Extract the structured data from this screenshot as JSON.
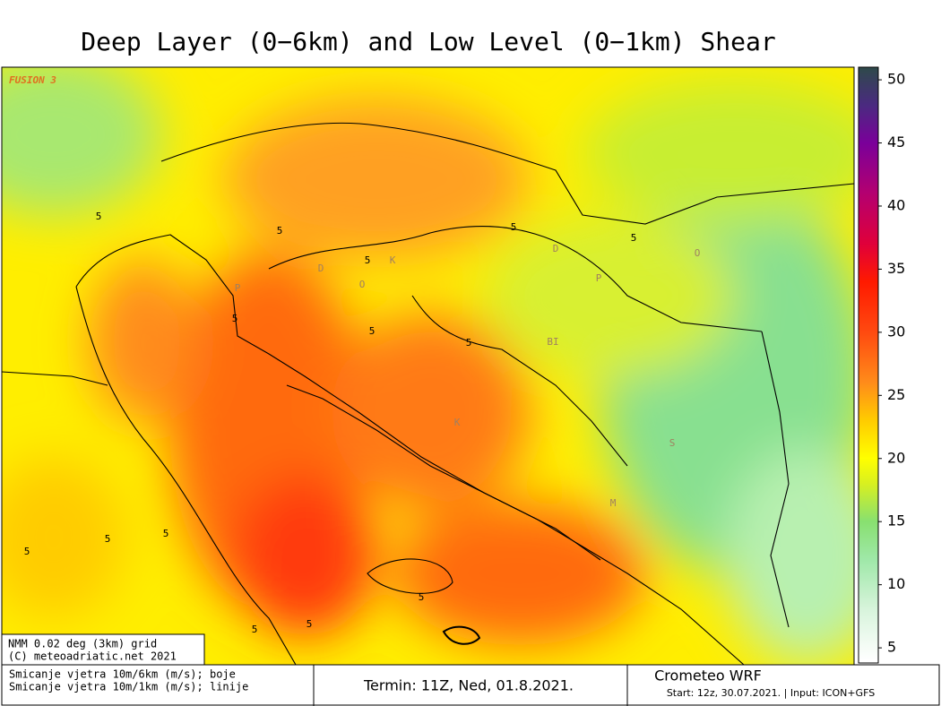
{
  "title": "Deep Layer (0−6km) and Low Level (0−1km) Shear",
  "watermark": "FUSION 3",
  "map": {
    "contour_labels": [
      "5",
      "5",
      "5",
      "5",
      "5",
      "5",
      "5",
      "5",
      "5",
      "5",
      "5",
      "5",
      "5",
      "5"
    ],
    "place_labels": [
      "D",
      "O",
      "K",
      "P",
      "BI",
      "K",
      "S",
      "M",
      "D",
      "P",
      "O"
    ]
  },
  "colorbar": {
    "lim": [
      3.8,
      51
    ],
    "ticks": [
      5,
      10,
      15,
      20,
      25,
      30,
      35,
      40,
      45,
      50
    ],
    "stops": [
      {
        "value": 4,
        "color": "#ffffff"
      },
      {
        "value": 8,
        "color": "#d8f4dc"
      },
      {
        "value": 12,
        "color": "#9fe8a8"
      },
      {
        "value": 15,
        "color": "#88e070"
      },
      {
        "value": 18,
        "color": "#d8f020"
      },
      {
        "value": 20,
        "color": "#ffff00"
      },
      {
        "value": 23,
        "color": "#ffcc00"
      },
      {
        "value": 26,
        "color": "#ff8c1a"
      },
      {
        "value": 30,
        "color": "#ff4a10"
      },
      {
        "value": 34,
        "color": "#ff1a00"
      },
      {
        "value": 37,
        "color": "#e0003a"
      },
      {
        "value": 41,
        "color": "#b40070"
      },
      {
        "value": 45,
        "color": "#7a009a"
      },
      {
        "value": 48,
        "color": "#4a2a80"
      },
      {
        "value": 51,
        "color": "#2e4a4a"
      }
    ]
  },
  "info_box": [
    "NMM 0.02 deg (3km) grid",
    "(C) meteoadriatic.net 2021"
  ],
  "footer": {
    "legend": [
      "Smicanje vjetra 10m/6km (m/s); boje",
      "Smicanje vjetra 10m/1km (m/s); linije"
    ],
    "run": "Termin: 11Z, Ned, 01.8.2021.",
    "model": "Crometeo WRF",
    "start": "Start: 12z, 30.07.2021. | Input: ICON+GFS"
  }
}
